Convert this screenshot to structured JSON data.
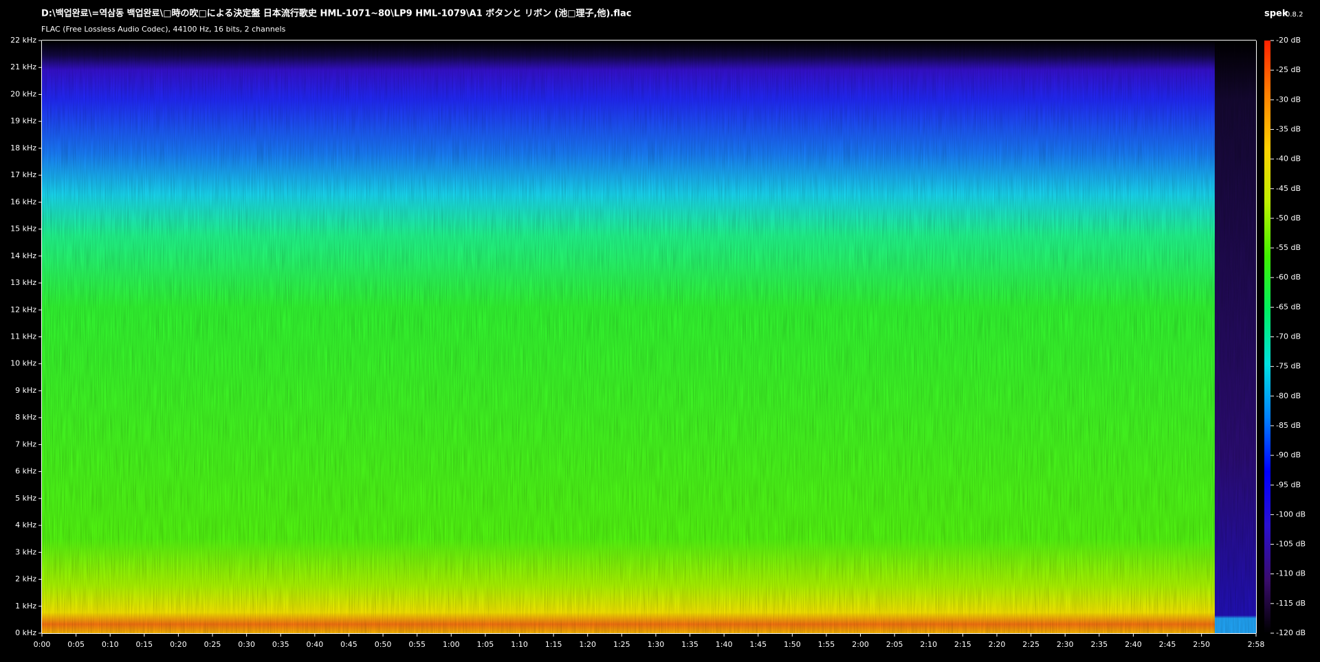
{
  "chart_data": {
    "type": "spectrogram",
    "title": "D:\\백업완료\\=역삼동 백업완료\\□時の吹□による決定盤 日本流行歌史 HML-1071~80\\LP9 HML-1079\\A1 ボタンと リボン (池□理子,他).flac",
    "subtitle": "FLAC (Free Lossless Audio Codec), 44100 Hz, 16 bits, 2 channels",
    "app_name": "spek",
    "app_version": "0.8.2",
    "xlim": [
      0,
      178
    ],
    "xticks": [
      {
        "value": 0,
        "label": "0:00"
      },
      {
        "value": 5,
        "label": "0:05"
      },
      {
        "value": 10,
        "label": "0:10"
      },
      {
        "value": 15,
        "label": "0:15"
      },
      {
        "value": 20,
        "label": "0:20"
      },
      {
        "value": 25,
        "label": "0:25"
      },
      {
        "value": 30,
        "label": "0:30"
      },
      {
        "value": 35,
        "label": "0:35"
      },
      {
        "value": 40,
        "label": "0:40"
      },
      {
        "value": 45,
        "label": "0:45"
      },
      {
        "value": 50,
        "label": "0:50"
      },
      {
        "value": 55,
        "label": "0:55"
      },
      {
        "value": 60,
        "label": "1:00"
      },
      {
        "value": 65,
        "label": "1:05"
      },
      {
        "value": 70,
        "label": "1:10"
      },
      {
        "value": 75,
        "label": "1:15"
      },
      {
        "value": 80,
        "label": "1:20"
      },
      {
        "value": 85,
        "label": "1:25"
      },
      {
        "value": 90,
        "label": "1:30"
      },
      {
        "value": 95,
        "label": "1:35"
      },
      {
        "value": 100,
        "label": "1:40"
      },
      {
        "value": 105,
        "label": "1:45"
      },
      {
        "value": 110,
        "label": "1:50"
      },
      {
        "value": 115,
        "label": "1:55"
      },
      {
        "value": 120,
        "label": "2:00"
      },
      {
        "value": 125,
        "label": "2:05"
      },
      {
        "value": 130,
        "label": "2:10"
      },
      {
        "value": 135,
        "label": "2:15"
      },
      {
        "value": 140,
        "label": "2:20"
      },
      {
        "value": 145,
        "label": "2:25"
      },
      {
        "value": 150,
        "label": "2:30"
      },
      {
        "value": 155,
        "label": "2:35"
      },
      {
        "value": 160,
        "label": "2:40"
      },
      {
        "value": 165,
        "label": "2:45"
      },
      {
        "value": 170,
        "label": "2:50"
      },
      {
        "value": 178,
        "label": "2:58"
      }
    ],
    "ylim": [
      0,
      22
    ],
    "yticks": [
      {
        "value": 0,
        "label": "0 kHz"
      },
      {
        "value": 1,
        "label": "1 kHz"
      },
      {
        "value": 2,
        "label": "2 kHz"
      },
      {
        "value": 3,
        "label": "3 kHz"
      },
      {
        "value": 4,
        "label": "4 kHz"
      },
      {
        "value": 5,
        "label": "5 kHz"
      },
      {
        "value": 6,
        "label": "6 kHz"
      },
      {
        "value": 7,
        "label": "7 kHz"
      },
      {
        "value": 8,
        "label": "8 kHz"
      },
      {
        "value": 9,
        "label": "9 kHz"
      },
      {
        "value": 10,
        "label": "10 kHz"
      },
      {
        "value": 11,
        "label": "11 kHz"
      },
      {
        "value": 12,
        "label": "12 kHz"
      },
      {
        "value": 13,
        "label": "13 kHz"
      },
      {
        "value": 14,
        "label": "14 kHz"
      },
      {
        "value": 15,
        "label": "15 kHz"
      },
      {
        "value": 16,
        "label": "16 kHz"
      },
      {
        "value": 17,
        "label": "17 kHz"
      },
      {
        "value": 18,
        "label": "18 kHz"
      },
      {
        "value": 19,
        "label": "19 kHz"
      },
      {
        "value": 20,
        "label": "20 kHz"
      },
      {
        "value": 21,
        "label": "21 kHz"
      },
      {
        "value": 22,
        "label": "22 kHz"
      }
    ],
    "zlim": [
      -120,
      -20
    ],
    "zticks": [
      {
        "value": -20,
        "label": "-20 dB"
      },
      {
        "value": -25,
        "label": "-25 dB"
      },
      {
        "value": -30,
        "label": "-30 dB"
      },
      {
        "value": -35,
        "label": "-35 dB"
      },
      {
        "value": -40,
        "label": "-40 dB"
      },
      {
        "value": -45,
        "label": "-45 dB"
      },
      {
        "value": -50,
        "label": "-50 dB"
      },
      {
        "value": -55,
        "label": "-55 dB"
      },
      {
        "value": -60,
        "label": "-60 dB"
      },
      {
        "value": -65,
        "label": "-65 dB"
      },
      {
        "value": -70,
        "label": "-70 dB"
      },
      {
        "value": -75,
        "label": "-75 dB"
      },
      {
        "value": -80,
        "label": "-80 dB"
      },
      {
        "value": -85,
        "label": "-85 dB"
      },
      {
        "value": -90,
        "label": "-90 dB"
      },
      {
        "value": -95,
        "label": "-95 dB"
      },
      {
        "value": -100,
        "label": "-100 dB"
      },
      {
        "value": -105,
        "label": "-105 dB"
      },
      {
        "value": -110,
        "label": "-110 dB"
      },
      {
        "value": -115,
        "label": "-115 dB"
      },
      {
        "value": -120,
        "label": "-120 dB"
      }
    ],
    "colormap": [
      "#000000",
      "#3a0c6e",
      "#2a10d0",
      "#0000ff",
      "#0080ff",
      "#00e0e0",
      "#00f060",
      "#40f000",
      "#c0f000",
      "#ffd000",
      "#ff8000",
      "#ff2000"
    ]
  }
}
